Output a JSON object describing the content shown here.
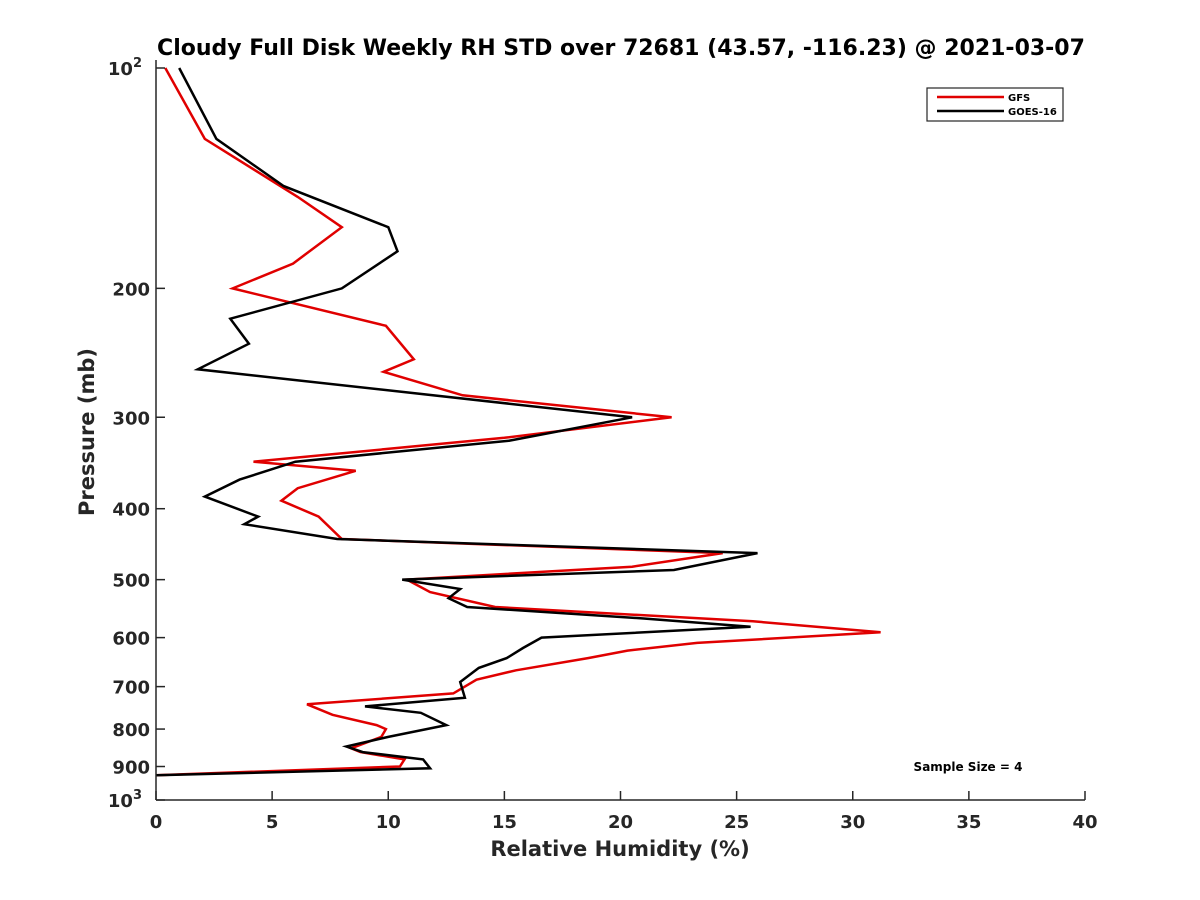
{
  "chart_data": {
    "type": "line",
    "title": "Cloudy Full Disk Weekly RH STD over 72681 (43.57, -116.23) @ 2021-03-07",
    "xlabel": "Relative Humidity (%)",
    "ylabel": "Pressure (mb)",
    "xlim": [
      0,
      40
    ],
    "ylim": [
      100,
      1000
    ],
    "y_scale": "log",
    "y_reversed": true,
    "grid": false,
    "legend_position": "top-right",
    "x_ticks": [
      0,
      5,
      10,
      15,
      20,
      25,
      30,
      35,
      40
    ],
    "x_tick_labels": [
      "0",
      "5",
      "10",
      "15",
      "20",
      "25",
      "30",
      "35",
      "40"
    ],
    "y_ticks": [
      {
        "value": 100,
        "base": "10",
        "exp": "2"
      },
      {
        "value": 200,
        "label": "200"
      },
      {
        "value": 300,
        "label": "300"
      },
      {
        "value": 400,
        "label": "400"
      },
      {
        "value": 500,
        "label": "500"
      },
      {
        "value": 600,
        "label": "600"
      },
      {
        "value": 700,
        "label": "700"
      },
      {
        "value": 800,
        "label": "800"
      },
      {
        "value": 900,
        "label": "900"
      },
      {
        "value": 1000,
        "base": "10",
        "exp": "3"
      }
    ],
    "annotation": "Sample Size = 4",
    "series": [
      {
        "name": "GFS",
        "color": "#e00000",
        "points": [
          [
            0.4,
            100
          ],
          [
            2.1,
            125
          ],
          [
            6.1,
            150
          ],
          [
            8.0,
            165
          ],
          [
            5.9,
            185
          ],
          [
            3.3,
            200
          ],
          [
            9.9,
            225
          ],
          [
            11.1,
            250
          ],
          [
            9.8,
            260
          ],
          [
            13.2,
            280
          ],
          [
            22.2,
            300
          ],
          [
            15.0,
            320
          ],
          [
            4.2,
            345
          ],
          [
            8.6,
            355
          ],
          [
            6.1,
            375
          ],
          [
            5.4,
            390
          ],
          [
            7.0,
            410
          ],
          [
            8.0,
            440
          ],
          [
            24.4,
            460
          ],
          [
            20.5,
            480
          ],
          [
            10.8,
            500
          ],
          [
            11.8,
            520
          ],
          [
            14.6,
            545
          ],
          [
            25.7,
            570
          ],
          [
            31.2,
            590
          ],
          [
            23.3,
            610
          ],
          [
            20.3,
            625
          ],
          [
            18.6,
            640
          ],
          [
            15.5,
            665
          ],
          [
            13.8,
            685
          ],
          [
            12.8,
            715
          ],
          [
            6.5,
            740
          ],
          [
            7.6,
            765
          ],
          [
            9.5,
            790
          ],
          [
            9.9,
            800
          ],
          [
            9.7,
            820
          ],
          [
            8.4,
            850
          ],
          [
            8.8,
            860
          ],
          [
            10.7,
            880
          ],
          [
            10.5,
            900
          ],
          [
            0,
            925
          ]
        ]
      },
      {
        "name": "GOES-16",
        "color": "#000000",
        "points": [
          [
            1.0,
            100
          ],
          [
            2.6,
            125
          ],
          [
            5.5,
            145
          ],
          [
            10.0,
            165
          ],
          [
            10.4,
            178
          ],
          [
            8.0,
            200
          ],
          [
            3.2,
            220
          ],
          [
            4.0,
            238
          ],
          [
            1.8,
            258
          ],
          [
            20.5,
            300
          ],
          [
            15.2,
            323
          ],
          [
            6.0,
            345
          ],
          [
            3.6,
            365
          ],
          [
            2.1,
            385
          ],
          [
            4.4,
            410
          ],
          [
            3.8,
            420
          ],
          [
            7.8,
            440
          ],
          [
            25.9,
            460
          ],
          [
            22.3,
            485
          ],
          [
            10.6,
            500
          ],
          [
            13.1,
            515
          ],
          [
            12.6,
            530
          ],
          [
            13.4,
            545
          ],
          [
            21.0,
            565
          ],
          [
            25.6,
            580
          ],
          [
            16.6,
            600
          ],
          [
            15.8,
            620
          ],
          [
            15.1,
            640
          ],
          [
            13.9,
            660
          ],
          [
            13.1,
            690
          ],
          [
            13.3,
            725
          ],
          [
            9.0,
            745
          ],
          [
            11.4,
            760
          ],
          [
            12.5,
            790
          ],
          [
            10.0,
            820
          ],
          [
            8.2,
            845
          ],
          [
            8.9,
            860
          ],
          [
            11.5,
            880
          ],
          [
            11.8,
            905
          ],
          [
            0,
            925
          ]
        ]
      }
    ]
  }
}
